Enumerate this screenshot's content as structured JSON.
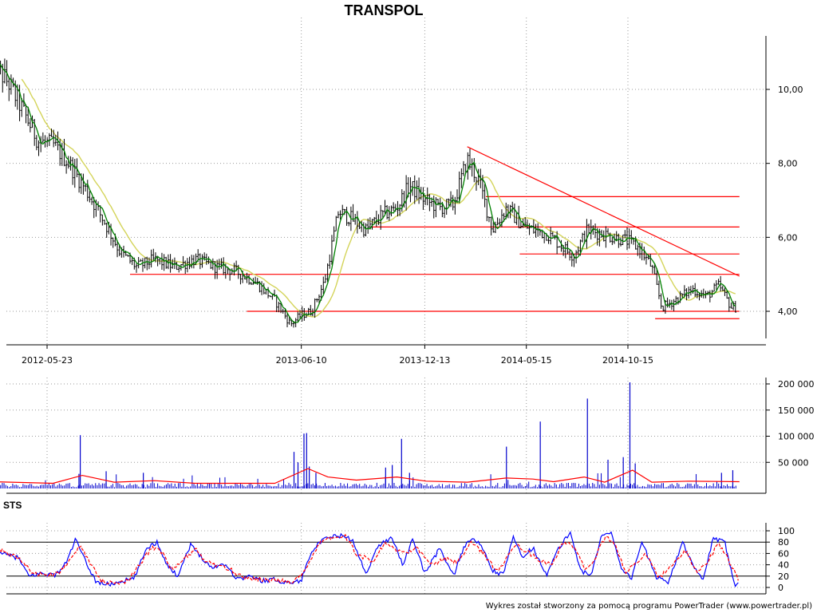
{
  "title": "TRANSPOL",
  "footer": "Wykres został stworzony za pomocą programu PowerTrader (www.powertrader.pl)",
  "colors": {
    "candle": "#000000",
    "ma_short": "#008000",
    "ma_long": "#d4d45a",
    "trendline": "#ff0000",
    "volume_bar": "#0000cc",
    "volume_avg": "#ff0000",
    "sts_k": "#0000ff",
    "sts_d": "#ff0000"
  },
  "chart_data": [
    {
      "type": "candlestick",
      "title": "TRANSPOL",
      "x_range": [
        "2012-03-01",
        "2015-04-01"
      ],
      "x_ticks": [
        {
          "date": "2012-05-23",
          "label": "2012-05-23"
        },
        {
          "date": "2013-06-10",
          "label": "2013-06-10"
        },
        {
          "date": "2013-12-13",
          "label": "2013-12-13"
        },
        {
          "date": "2014-05-15",
          "label": "2014-05-15"
        },
        {
          "date": "2014-10-15",
          "label": "2014-10-15"
        }
      ],
      "ylim": [
        3.3,
        11.4
      ],
      "y_ticks": [
        {
          "value": 4,
          "label": "4,00"
        },
        {
          "value": 6,
          "label": "6,00"
        },
        {
          "value": 8,
          "label": "8,00"
        },
        {
          "value": 10,
          "label": "10,00"
        }
      ],
      "grid": true,
      "price_path": [
        [
          "2012-03-01",
          10.7
        ],
        [
          "2012-03-25",
          10.2
        ],
        [
          "2012-04-20",
          9.3
        ],
        [
          "2012-05-10",
          8.6
        ],
        [
          "2012-06-01",
          8.5
        ],
        [
          "2012-06-25",
          8.0
        ],
        [
          "2012-07-20",
          7.3
        ],
        [
          "2012-08-15",
          6.5
        ],
        [
          "2012-09-10",
          5.6
        ],
        [
          "2012-10-05",
          5.2
        ],
        [
          "2012-11-01",
          5.4
        ],
        [
          "2012-12-01",
          5.2
        ],
        [
          "2013-01-01",
          5.4
        ],
        [
          "2013-02-01",
          5.2
        ],
        [
          "2013-03-01",
          5.1
        ],
        [
          "2013-04-01",
          4.8
        ],
        [
          "2013-05-01",
          4.3
        ],
        [
          "2013-05-25",
          3.65
        ],
        [
          "2013-06-10",
          3.9
        ],
        [
          "2013-06-25",
          4.0
        ],
        [
          "2013-07-15",
          4.8
        ],
        [
          "2013-08-05",
          6.7
        ],
        [
          "2013-08-25",
          6.5
        ],
        [
          "2013-09-15",
          6.2
        ],
        [
          "2013-10-10",
          6.6
        ],
        [
          "2013-11-01",
          6.8
        ],
        [
          "2013-11-20",
          7.4
        ],
        [
          "2013-12-13",
          7.0
        ],
        [
          "2014-01-05",
          6.8
        ],
        [
          "2014-01-25",
          6.9
        ],
        [
          "2014-02-15",
          8.1
        ],
        [
          "2014-03-05",
          7.5
        ],
        [
          "2014-03-25",
          6.2
        ],
        [
          "2014-04-15",
          6.8
        ],
        [
          "2014-05-10",
          6.3
        ],
        [
          "2014-05-25",
          6.2
        ],
        [
          "2014-06-15",
          6.1
        ],
        [
          "2014-07-05",
          5.8
        ],
        [
          "2014-07-25",
          5.5
        ],
        [
          "2014-08-15",
          6.2
        ],
        [
          "2014-09-05",
          6.1
        ],
        [
          "2014-09-25",
          6.0
        ],
        [
          "2014-10-15",
          5.9
        ],
        [
          "2014-11-01",
          5.7
        ],
        [
          "2014-11-20",
          5.2
        ],
        [
          "2014-12-05",
          4.1
        ],
        [
          "2014-12-25",
          4.3
        ],
        [
          "2015-01-20",
          4.6
        ],
        [
          "2015-02-10",
          4.4
        ],
        [
          "2015-03-01",
          4.7
        ],
        [
          "2015-03-20",
          4.1
        ],
        [
          "2015-04-01",
          4.1
        ]
      ],
      "horizontal_levels": [
        {
          "y": 7.1,
          "x_start": "2014-03-15",
          "x_end": "2015-04-01"
        },
        {
          "y": 6.28,
          "x_start": "2013-09-25",
          "x_end": "2015-04-01"
        },
        {
          "y": 5.55,
          "x_start": "2014-05-05",
          "x_end": "2015-04-01"
        },
        {
          "y": 5.0,
          "x_start": "2012-09-25",
          "x_end": "2015-04-01"
        },
        {
          "y": 4.0,
          "x_start": "2013-03-20",
          "x_end": "2015-04-01"
        },
        {
          "y": 3.8,
          "x_start": "2014-11-25",
          "x_end": "2015-04-01"
        }
      ],
      "trend_line": {
        "start": [
          "2014-02-15",
          8.45
        ],
        "end": [
          "2015-04-01",
          4.95
        ]
      }
    },
    {
      "type": "bar",
      "x_range": [
        "2012-03-01",
        "2015-04-01"
      ],
      "ylim": [
        0,
        210000
      ],
      "y_ticks": [
        {
          "value": 50000,
          "label": "50 000"
        },
        {
          "value": 100000,
          "label": "100 000"
        },
        {
          "value": 150000,
          "label": "150 000"
        },
        {
          "value": 200000,
          "label": "200 000"
        }
      ],
      "spikes": [
        [
          "2012-07-12",
          102000
        ],
        [
          "2012-07-10",
          28000
        ],
        [
          "2012-08-20",
          33000
        ],
        [
          "2012-10-15",
          30000
        ],
        [
          "2013-05-30",
          70000
        ],
        [
          "2013-06-05",
          50000
        ],
        [
          "2013-06-14",
          105000
        ],
        [
          "2013-06-18",
          106000
        ],
        [
          "2013-06-22",
          42000
        ],
        [
          "2013-07-02",
          30000
        ],
        [
          "2013-10-15",
          40000
        ],
        [
          "2013-10-25",
          45000
        ],
        [
          "2013-11-08",
          95000
        ],
        [
          "2013-11-20",
          30000
        ],
        [
          "2014-04-15",
          80000
        ],
        [
          "2014-06-05",
          128000
        ],
        [
          "2014-08-15",
          172000
        ],
        [
          "2014-09-15",
          55000
        ],
        [
          "2014-10-08",
          60000
        ],
        [
          "2014-10-18",
          203000
        ],
        [
          "2014-10-26",
          48000
        ],
        [
          "2015-03-05",
          30000
        ],
        [
          "2015-03-22",
          35000
        ]
      ],
      "average_path": [
        [
          "2012-03-01",
          13000
        ],
        [
          "2012-06-01",
          10000
        ],
        [
          "2012-07-15",
          25000
        ],
        [
          "2012-09-01",
          12000
        ],
        [
          "2012-11-01",
          15000
        ],
        [
          "2013-01-01",
          10000
        ],
        [
          "2013-05-01",
          10000
        ],
        [
          "2013-06-20",
          38000
        ],
        [
          "2013-07-20",
          22000
        ],
        [
          "2013-09-01",
          16000
        ],
        [
          "2013-11-01",
          22000
        ],
        [
          "2013-12-15",
          14000
        ],
        [
          "2014-02-15",
          12000
        ],
        [
          "2014-04-15",
          20000
        ],
        [
          "2014-05-25",
          18000
        ],
        [
          "2014-06-25",
          13000
        ],
        [
          "2014-08-10",
          22000
        ],
        [
          "2014-09-10",
          12000
        ],
        [
          "2014-10-22",
          35000
        ],
        [
          "2014-11-20",
          12000
        ],
        [
          "2015-01-15",
          14000
        ],
        [
          "2015-04-01",
          13000
        ]
      ]
    },
    {
      "type": "line",
      "title": "STS",
      "x_range": [
        "2012-03-01",
        "2015-04-01"
      ],
      "ylim": [
        0,
        100
      ],
      "y_ticks": [
        {
          "value": 0,
          "label": "0"
        },
        {
          "value": 20,
          "label": "20"
        },
        {
          "value": 40,
          "label": "40"
        },
        {
          "value": 60,
          "label": "60"
        },
        {
          "value": 80,
          "label": "80"
        },
        {
          "value": 100,
          "label": "100"
        }
      ],
      "reference_lines": [
        80,
        20
      ],
      "series": [
        {
          "points": [
            [
              "2012-03-01",
              75
            ],
            [
              "2012-03-20",
              58
            ],
            [
              "2012-04-10",
              52
            ],
            [
              "2012-04-25",
              20
            ],
            [
              "2012-05-15",
              25
            ],
            [
              "2012-06-05",
              22
            ],
            [
              "2012-06-20",
              42
            ],
            [
              "2012-07-05",
              85
            ],
            [
              "2012-07-20",
              45
            ],
            [
              "2012-08-05",
              10
            ],
            [
              "2012-08-25",
              5
            ],
            [
              "2012-09-15",
              12
            ],
            [
              "2012-10-01",
              15
            ],
            [
              "2012-10-20",
              70
            ],
            [
              "2012-11-05",
              80
            ],
            [
              "2012-11-20",
              40
            ],
            [
              "2012-12-05",
              20
            ],
            [
              "2012-12-25",
              75
            ],
            [
              "2013-01-10",
              55
            ],
            [
              "2013-01-25",
              35
            ],
            [
              "2013-02-15",
              42
            ],
            [
              "2013-03-05",
              15
            ],
            [
              "2013-03-25",
              20
            ],
            [
              "2013-04-10",
              12
            ],
            [
              "2013-05-01",
              14
            ],
            [
              "2013-05-20",
              8
            ],
            [
              "2013-06-10",
              12
            ],
            [
              "2013-06-25",
              65
            ],
            [
              "2013-07-15",
              85
            ],
            [
              "2013-08-05",
              92
            ],
            [
              "2013-08-25",
              85
            ],
            [
              "2013-09-15",
              25
            ],
            [
              "2013-10-05",
              75
            ],
            [
              "2013-10-25",
              88
            ],
            [
              "2013-11-10",
              40
            ],
            [
              "2013-11-25",
              85
            ],
            [
              "2013-12-13",
              25
            ],
            [
              "2014-01-05",
              70
            ],
            [
              "2014-01-25",
              20
            ],
            [
              "2014-02-15",
              85
            ],
            [
              "2014-03-05",
              80
            ],
            [
              "2014-03-25",
              30
            ],
            [
              "2014-04-10",
              22
            ],
            [
              "2014-04-25",
              88
            ],
            [
              "2014-05-10",
              55
            ],
            [
              "2014-05-25",
              70
            ],
            [
              "2014-06-15",
              22
            ],
            [
              "2014-07-01",
              65
            ],
            [
              "2014-07-20",
              98
            ],
            [
              "2014-08-05",
              30
            ],
            [
              "2014-08-20",
              20
            ],
            [
              "2014-09-05",
              90
            ],
            [
              "2014-09-20",
              98
            ],
            [
              "2014-10-05",
              35
            ],
            [
              "2014-10-20",
              15
            ],
            [
              "2014-11-05",
              82
            ],
            [
              "2014-11-25",
              20
            ],
            [
              "2014-12-15",
              10
            ],
            [
              "2015-01-05",
              80
            ],
            [
              "2015-01-20",
              40
            ],
            [
              "2015-02-05",
              12
            ],
            [
              "2015-02-20",
              85
            ],
            [
              "2015-03-10",
              80
            ],
            [
              "2015-03-25",
              5
            ],
            [
              "2015-04-01",
              12
            ]
          ]
        },
        {
          "points": [
            [
              "2012-03-01",
              70
            ],
            [
              "2012-03-25",
              60
            ],
            [
              "2012-04-15",
              48
            ],
            [
              "2012-05-01",
              25
            ],
            [
              "2012-05-20",
              22
            ],
            [
              "2012-06-10",
              25
            ],
            [
              "2012-06-28",
              50
            ],
            [
              "2012-07-12",
              75
            ],
            [
              "2012-07-28",
              40
            ],
            [
              "2012-08-12",
              12
            ],
            [
              "2012-09-01",
              8
            ],
            [
              "2012-09-22",
              12
            ],
            [
              "2012-10-10",
              40
            ],
            [
              "2012-10-28",
              72
            ],
            [
              "2012-11-12",
              62
            ],
            [
              "2012-11-28",
              30
            ],
            [
              "2012-12-15",
              50
            ],
            [
              "2013-01-01",
              68
            ],
            [
              "2013-01-18",
              45
            ],
            [
              "2013-02-05",
              38
            ],
            [
              "2013-02-25",
              30
            ],
            [
              "2013-03-15",
              18
            ],
            [
              "2013-04-01",
              16
            ],
            [
              "2013-04-20",
              13
            ],
            [
              "2013-05-10",
              12
            ],
            [
              "2013-05-30",
              10
            ],
            [
              "2013-06-18",
              35
            ],
            [
              "2013-07-05",
              75
            ],
            [
              "2013-07-25",
              88
            ],
            [
              "2013-08-15",
              90
            ],
            [
              "2013-09-01",
              60
            ],
            [
              "2013-09-25",
              45
            ],
            [
              "2013-10-15",
              80
            ],
            [
              "2013-11-01",
              65
            ],
            [
              "2013-11-18",
              60
            ],
            [
              "2013-12-01",
              70
            ],
            [
              "2013-12-22",
              40
            ],
            [
              "2014-01-12",
              50
            ],
            [
              "2014-02-01",
              45
            ],
            [
              "2014-02-22",
              80
            ],
            [
              "2014-03-12",
              60
            ],
            [
              "2014-04-01",
              28
            ],
            [
              "2014-04-18",
              55
            ],
            [
              "2014-05-01",
              75
            ],
            [
              "2014-05-18",
              62
            ],
            [
              "2014-06-01",
              50
            ],
            [
              "2014-06-22",
              40
            ],
            [
              "2014-07-10",
              80
            ],
            [
              "2014-07-28",
              70
            ],
            [
              "2014-08-12",
              28
            ],
            [
              "2014-08-28",
              55
            ],
            [
              "2014-09-12",
              92
            ],
            [
              "2014-09-28",
              70
            ],
            [
              "2014-10-12",
              25
            ],
            [
              "2014-10-28",
              45
            ],
            [
              "2014-11-12",
              60
            ],
            [
              "2014-12-01",
              18
            ],
            [
              "2014-12-22",
              40
            ],
            [
              "2015-01-10",
              65
            ],
            [
              "2015-01-28",
              25
            ],
            [
              "2015-02-12",
              45
            ],
            [
              "2015-02-28",
              80
            ],
            [
              "2015-03-15",
              50
            ],
            [
              "2015-04-01",
              10
            ]
          ]
        }
      ]
    }
  ]
}
